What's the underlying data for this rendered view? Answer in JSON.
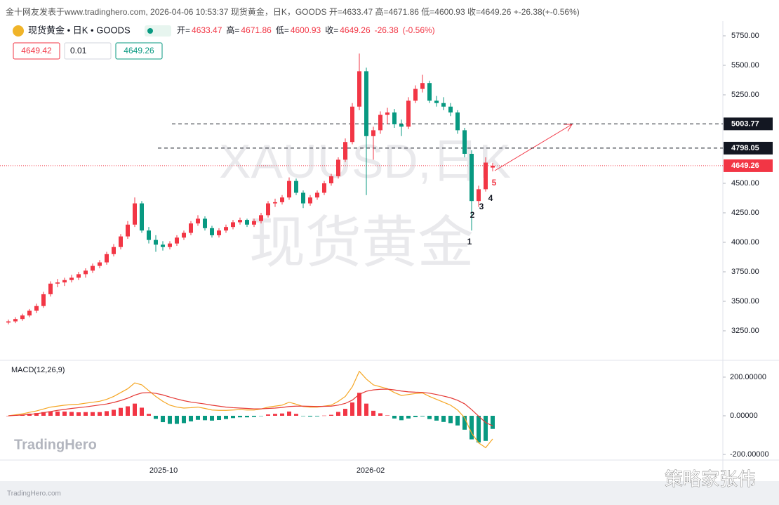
{
  "chart_data": {
    "type": "candlestick",
    "header": "金十网友发表于www.tradinghero.com, 2026-04-06 10:53:37 现货黄金，日K，GOODS 开=4633.47 高=4671.86 低=4600.93 收=4649.26 +-26.38(+-0.56%)",
    "symbol": "现货黄金 • 日K • GOODS",
    "ohlc_labels": [
      "开=",
      "高=",
      "低=",
      "收="
    ],
    "change": -26.38,
    "change_pct": {
      "value": -0.56,
      "label": "(-0.56%)"
    },
    "bid": 4649.42,
    "spread": 0.01,
    "ask": 4649.26,
    "watermark": [
      "XAUUSD,日K",
      "现货黄金"
    ],
    "up_color": "#f23645",
    "down_color": "#089981",
    "ylim": [
      3000,
      5875
    ],
    "yticks": [
      {
        "value": 5750,
        "label": "5750.00"
      },
      {
        "value": 5500,
        "label": "5500.00"
      },
      {
        "value": 5250,
        "label": "5250.00"
      },
      {
        "value": 4500,
        "label": "4500.00"
      },
      {
        "value": 4250,
        "label": "4250.00"
      },
      {
        "value": 4000,
        "label": "4000.00"
      },
      {
        "value": 3750,
        "label": "3750.00"
      },
      {
        "value": 3500,
        "label": "3500.00"
      },
      {
        "value": 3250,
        "label": "3250.00"
      }
    ],
    "xticks": [
      "2025-10",
      "2026-02"
    ],
    "price_lines": [
      {
        "value": 5003.77,
        "color": "#131722",
        "style": "dashed"
      },
      {
        "value": 4798.05,
        "color": "#131722",
        "style": "dashed"
      },
      {
        "value": 4649.26,
        "color": "#f23645",
        "style": "dotted"
      }
    ],
    "wave_labels": [
      "1",
      "2",
      "3",
      "4",
      "5"
    ],
    "candles": [
      [
        3320,
        3345,
        3305,
        3330
      ],
      [
        3330,
        3365,
        3315,
        3350
      ],
      [
        3350,
        3395,
        3335,
        3380
      ],
      [
        3380,
        3435,
        3365,
        3420
      ],
      [
        3420,
        3480,
        3400,
        3460
      ],
      [
        3460,
        3580,
        3445,
        3560
      ],
      [
        3560,
        3670,
        3540,
        3650
      ],
      [
        3650,
        3690,
        3620,
        3660
      ],
      [
        3660,
        3700,
        3630,
        3680
      ],
      [
        3680,
        3725,
        3660,
        3700
      ],
      [
        3700,
        3750,
        3680,
        3730
      ],
      [
        3730,
        3780,
        3700,
        3760
      ],
      [
        3760,
        3820,
        3740,
        3800
      ],
      [
        3800,
        3850,
        3780,
        3830
      ],
      [
        3830,
        3920,
        3810,
        3900
      ],
      [
        3900,
        3985,
        3880,
        3960
      ],
      [
        3960,
        4070,
        3940,
        4050
      ],
      [
        4050,
        4180,
        4030,
        4150
      ],
      [
        4150,
        4380,
        4130,
        4330
      ],
      [
        4330,
        4350,
        4080,
        4100
      ],
      [
        4100,
        4130,
        3990,
        4020
      ],
      [
        4020,
        4060,
        3920,
        3980
      ],
      [
        3980,
        4010,
        3930,
        3960
      ],
      [
        3960,
        4010,
        3940,
        3990
      ],
      [
        3990,
        4060,
        3970,
        4040
      ],
      [
        4040,
        4100,
        4020,
        4080
      ],
      [
        4080,
        4180,
        4060,
        4160
      ],
      [
        4160,
        4230,
        4140,
        4200
      ],
      [
        4200,
        4220,
        4100,
        4120
      ],
      [
        4120,
        4140,
        4040,
        4060
      ],
      [
        4060,
        4120,
        4040,
        4100
      ],
      [
        4100,
        4150,
        4080,
        4130
      ],
      [
        4130,
        4190,
        4110,
        4170
      ],
      [
        4170,
        4210,
        4150,
        4190
      ],
      [
        4190,
        4200,
        4130,
        4150
      ],
      [
        4150,
        4200,
        4130,
        4180
      ],
      [
        4180,
        4250,
        4160,
        4230
      ],
      [
        4230,
        4350,
        4210,
        4330
      ],
      [
        4330,
        4370,
        4300,
        4340
      ],
      [
        4340,
        4400,
        4320,
        4380
      ],
      [
        4380,
        4550,
        4360,
        4520
      ],
      [
        4520,
        4540,
        4400,
        4420
      ],
      [
        4420,
        4440,
        4290,
        4330
      ],
      [
        4330,
        4400,
        4310,
        4380
      ],
      [
        4380,
        4440,
        4360,
        4420
      ],
      [
        4420,
        4520,
        4400,
        4500
      ],
      [
        4500,
        4580,
        4480,
        4560
      ],
      [
        4560,
        4720,
        4540,
        4700
      ],
      [
        4700,
        4880,
        4680,
        4850
      ],
      [
        4850,
        5180,
        4830,
        5150
      ],
      [
        5150,
        5600,
        5120,
        5450
      ],
      [
        5450,
        5480,
        4400,
        4900
      ],
      [
        4900,
        4980,
        4700,
        4950
      ],
      [
        4950,
        5110,
        4920,
        5080
      ],
      [
        5080,
        5140,
        5000,
        5100
      ],
      [
        5100,
        5130,
        4970,
        5000
      ],
      [
        5000,
        5040,
        4900,
        4980
      ],
      [
        4980,
        5230,
        4960,
        5200
      ],
      [
        5200,
        5330,
        5180,
        5300
      ],
      [
        5300,
        5420,
        5270,
        5350
      ],
      [
        5350,
        5370,
        5180,
        5200
      ],
      [
        5200,
        5240,
        5150,
        5180
      ],
      [
        5180,
        5230,
        5120,
        5150
      ],
      [
        5150,
        5180,
        5070,
        5100
      ],
      [
        5100,
        5120,
        4920,
        4950
      ],
      [
        4950,
        4970,
        4720,
        4750
      ],
      [
        4750,
        4780,
        4100,
        4350
      ],
      [
        4350,
        4480,
        4300,
        4450
      ],
      [
        4450,
        4720,
        4430,
        4675.64
      ],
      [
        4633.47,
        4671.86,
        4600.93,
        4649.26
      ]
    ],
    "macd": {
      "label": "MACD(12,26,9)",
      "ylim": [
        -229,
        287
      ],
      "yticks": [
        {
          "value": 200,
          "label": "200.00000"
        },
        {
          "value": 0,
          "label": "0.00000"
        },
        {
          "value": -200,
          "label": "-200.00000"
        }
      ],
      "macd_color": "#f5a623",
      "signal_color": "#e53935",
      "macd": [
        0,
        5,
        10,
        18,
        25,
        35,
        45,
        50,
        55,
        58,
        60,
        65,
        70,
        75,
        85,
        100,
        120,
        140,
        170,
        160,
        130,
        100,
        75,
        55,
        45,
        40,
        42,
        45,
        38,
        30,
        28,
        28,
        30,
        32,
        30,
        30,
        35,
        45,
        50,
        55,
        70,
        60,
        48,
        45,
        45,
        50,
        55,
        75,
        100,
        150,
        230,
        190,
        160,
        150,
        140,
        120,
        105,
        110,
        115,
        118,
        100,
        85,
        70,
        55,
        30,
        -10,
        -90,
        -140,
        -165,
        -120
      ],
      "signal": [
        0,
        2,
        4,
        7,
        11,
        16,
        22,
        28,
        33,
        38,
        42,
        46,
        51,
        56,
        61,
        69,
        79,
        91,
        107,
        118,
        120,
        116,
        108,
        97,
        87,
        78,
        71,
        66,
        61,
        55,
        50,
        45,
        42,
        40,
        38,
        36,
        36,
        38,
        40,
        43,
        48,
        50,
        50,
        49,
        48,
        49,
        50,
        55,
        64,
        81,
        111,
        127,
        134,
        137,
        138,
        134,
        128,
        124,
        122,
        121,
        117,
        110,
        102,
        93,
        80,
        62,
        32,
        -2,
        -35,
        -52
      ],
      "hist": [
        0,
        3,
        6,
        11,
        14,
        19,
        23,
        22,
        22,
        20,
        18,
        19,
        19,
        19,
        24,
        31,
        41,
        49,
        63,
        42,
        10,
        -16,
        -33,
        -42,
        -42,
        -38,
        -29,
        -21,
        -23,
        -25,
        -22,
        -17,
        -12,
        -8,
        -8,
        -6,
        -1,
        7,
        10,
        12,
        22,
        10,
        -2,
        -4,
        -3,
        1,
        5,
        20,
        36,
        69,
        119,
        63,
        26,
        13,
        2,
        -14,
        -23,
        -14,
        -7,
        -3,
        -17,
        -25,
        -32,
        -38,
        -50,
        -72,
        -122,
        -138,
        -130,
        -68
      ]
    },
    "logo": "TradingHero",
    "footer": "TradingHero.com",
    "signature": "策略家张伟"
  }
}
